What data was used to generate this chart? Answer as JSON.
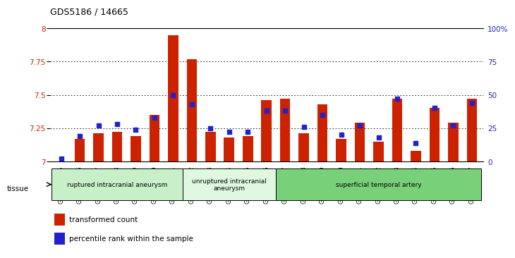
{
  "title": "GDS5186 / 14665",
  "samples": [
    "GSM1306885",
    "GSM1306886",
    "GSM1306887",
    "GSM1306888",
    "GSM1306889",
    "GSM1306890",
    "GSM1306891",
    "GSM1306892",
    "GSM1306893",
    "GSM1306894",
    "GSM1306895",
    "GSM1306896",
    "GSM1306897",
    "GSM1306898",
    "GSM1306899",
    "GSM1306900",
    "GSM1306901",
    "GSM1306902",
    "GSM1306903",
    "GSM1306904",
    "GSM1306905",
    "GSM1306906",
    "GSM1306907"
  ],
  "transformed_count": [
    7.0,
    7.17,
    7.21,
    7.22,
    7.19,
    7.35,
    7.95,
    7.77,
    7.22,
    7.18,
    7.19,
    7.46,
    7.47,
    7.21,
    7.43,
    7.17,
    7.29,
    7.15,
    7.47,
    7.08,
    7.4,
    7.29,
    7.47
  ],
  "percentile_rank": [
    2,
    19,
    27,
    28,
    24,
    33,
    50,
    43,
    25,
    22,
    22,
    38,
    38,
    26,
    35,
    20,
    27,
    18,
    47,
    14,
    40,
    27,
    44
  ],
  "ylim_left": [
    7.0,
    8.0
  ],
  "ylim_right": [
    0,
    100
  ],
  "yticks_left": [
    7.0,
    7.25,
    7.5,
    7.75,
    8.0
  ],
  "ytick_labels_left": [
    "7",
    "7.25",
    "7.5",
    "7.75",
    "8"
  ],
  "yticks_right": [
    0,
    25,
    50,
    75,
    100
  ],
  "ytick_labels_right": [
    "0",
    "25",
    "50",
    "75",
    "100%"
  ],
  "groups": [
    {
      "label": "ruptured intracranial aneurysm",
      "start": 0,
      "end": 7,
      "color": "#c8f0c8"
    },
    {
      "label": "unruptured intracranial\naneurysm",
      "start": 7,
      "end": 12,
      "color": "#e0f8e0"
    },
    {
      "label": "superficial temporal artery",
      "start": 12,
      "end": 23,
      "color": "#78d078"
    }
  ],
  "bar_color": "#cc2200",
  "dot_color": "#2222cc",
  "plot_bg_color": "#ffffff",
  "fig_bg_color": "#ffffff",
  "tissue_label": "tissue",
  "legend_items": [
    {
      "label": "transformed count",
      "color": "#cc2200"
    },
    {
      "label": "percentile rank within the sample",
      "color": "#2222cc"
    }
  ]
}
